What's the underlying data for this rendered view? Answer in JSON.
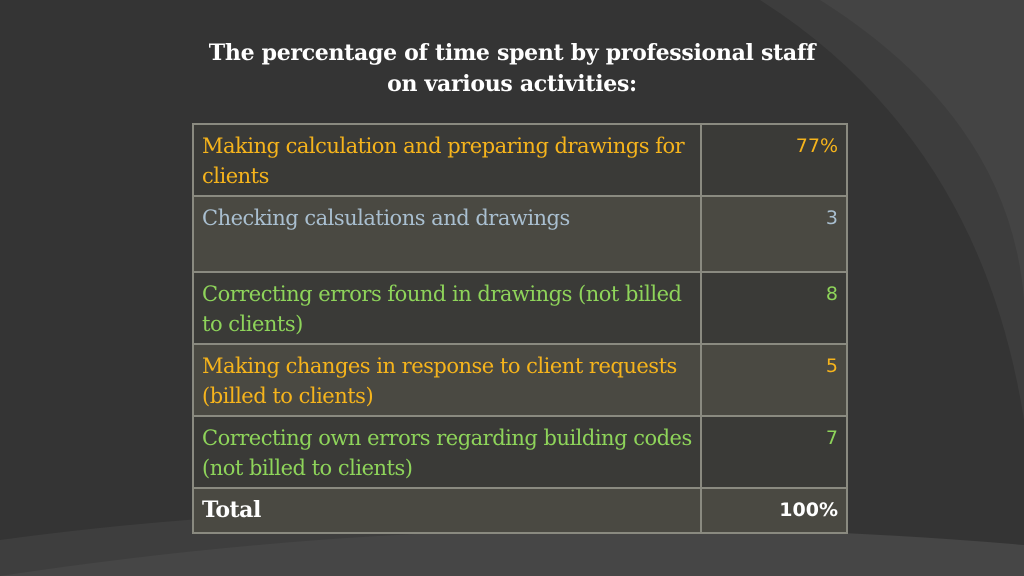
{
  "title": {
    "line1": "The percentage of time spent by professional staff",
    "line2": "on various activities:"
  },
  "colors": {
    "background": "#343434",
    "orange": "#f6b41c",
    "blue_gray": "#a9bfd0",
    "green": "#8ed45a",
    "white": "#ffffff",
    "border": "#8a8a80"
  },
  "table": {
    "rows": [
      {
        "label": "Making calculation and preparing drawings for clients",
        "value": "77%",
        "color": "orange"
      },
      {
        "label": "Checking calsulations and drawings",
        "value": "3",
        "color": "blue_gray"
      },
      {
        "label": "Correcting errors found in drawings (not billed to clients)",
        "value": "8",
        "color": "green"
      },
      {
        "label": "Making changes in response to client requests (billed to clients)",
        "value": "5",
        "color": "orange"
      },
      {
        "label": "Correcting own errors regarding building codes (not billed to clients)",
        "value": "7",
        "color": "green"
      },
      {
        "label": "Total",
        "value": "100%",
        "color": "white"
      }
    ]
  }
}
